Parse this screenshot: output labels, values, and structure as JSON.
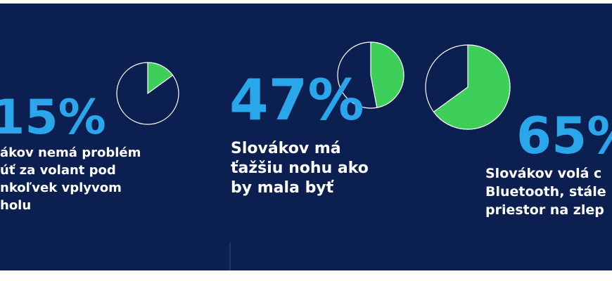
{
  "chart_data": [
    {
      "type": "pie",
      "values": [
        15
      ],
      "value_labels": [
        "15%"
      ],
      "color": "#3ecf5a",
      "lines": [
        "ákov nemá problém",
        "úť za volant pod",
        "nkoľvek vplyvom",
        "holu"
      ]
    },
    {
      "type": "pie",
      "values": [
        47
      ],
      "value_labels": [
        "47%"
      ],
      "color": "#3ecf5a",
      "lines": [
        "Slovákov má",
        "ťažšiu nohu ako",
        "by mala byť"
      ]
    },
    {
      "type": "pie",
      "values": [
        65
      ],
      "value_labels": [
        "65%"
      ],
      "color": "#3ecf5a",
      "lines": [
        "Slovákov volá c",
        "Bluetooth, stále",
        "priestor na zlep"
      ]
    }
  ]
}
